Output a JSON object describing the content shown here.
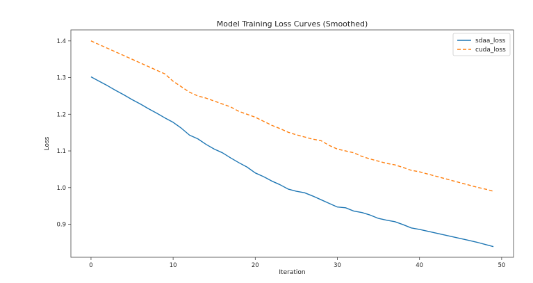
{
  "chart_data": {
    "type": "line",
    "title": "Model Training Loss Curves (Smoothed)",
    "xlabel": "Iteration",
    "ylabel": "Loss",
    "xlim": [
      -2.45,
      51.45
    ],
    "ylim": [
      0.81,
      1.43
    ],
    "xticks": [
      0,
      10,
      20,
      30,
      40,
      50
    ],
    "yticks": [
      0.9,
      1.0,
      1.1,
      1.2,
      1.3,
      1.4
    ],
    "xtick_labels": [
      "0",
      "10",
      "20",
      "30",
      "40",
      "50"
    ],
    "ytick_labels": [
      "0.9",
      "1.0",
      "1.1",
      "1.2",
      "1.3",
      "1.4"
    ],
    "grid": false,
    "legend_position": "top-right",
    "x": [
      0,
      1,
      2,
      3,
      4,
      5,
      6,
      7,
      8,
      9,
      10,
      11,
      12,
      13,
      14,
      15,
      16,
      17,
      18,
      19,
      20,
      21,
      22,
      23,
      24,
      25,
      26,
      27,
      28,
      29,
      30,
      31,
      32,
      33,
      34,
      35,
      36,
      37,
      38,
      39,
      40,
      41,
      42,
      43,
      44,
      45,
      46,
      47,
      48,
      49
    ],
    "series": [
      {
        "name": "sdaa_loss",
        "color": "#1f77b4",
        "style": "solid",
        "values": [
          1.302,
          1.29,
          1.278,
          1.265,
          1.253,
          1.24,
          1.228,
          1.215,
          1.203,
          1.19,
          1.178,
          1.162,
          1.143,
          1.133,
          1.118,
          1.105,
          1.095,
          1.081,
          1.068,
          1.056,
          1.04,
          1.03,
          1.018,
          1.008,
          0.996,
          0.99,
          0.986,
          0.977,
          0.967,
          0.957,
          0.947,
          0.945,
          0.936,
          0.932,
          0.925,
          0.916,
          0.911,
          0.907,
          0.899,
          0.89,
          0.886,
          0.881,
          0.876,
          0.871,
          0.866,
          0.861,
          0.856,
          0.851,
          0.845,
          0.839
        ]
      },
      {
        "name": "cuda_loss",
        "color": "#ff7f0e",
        "style": "dashed",
        "values": [
          1.4,
          1.39,
          1.38,
          1.37,
          1.36,
          1.35,
          1.34,
          1.33,
          1.32,
          1.31,
          1.29,
          1.275,
          1.26,
          1.25,
          1.244,
          1.236,
          1.228,
          1.22,
          1.208,
          1.2,
          1.192,
          1.181,
          1.17,
          1.161,
          1.151,
          1.144,
          1.138,
          1.132,
          1.128,
          1.115,
          1.105,
          1.1,
          1.095,
          1.085,
          1.078,
          1.072,
          1.066,
          1.062,
          1.055,
          1.047,
          1.043,
          1.037,
          1.031,
          1.025,
          1.019,
          1.013,
          1.007,
          1.001,
          0.996,
          0.99
        ]
      }
    ]
  }
}
